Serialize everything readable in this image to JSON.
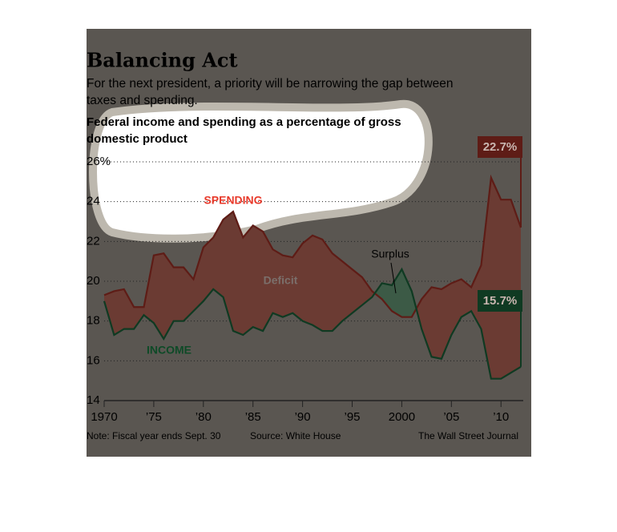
{
  "chart_data": {
    "type": "line",
    "title": "Balancing Act",
    "subtitle": "For the next president, a priority will be narrowing the gap between taxes and spending.",
    "chart_title": "Federal income and spending as a percentage of gross domestic product",
    "annotations": {
      "spending": "SPENDING",
      "income": "INCOME",
      "deficit": "Deficit",
      "surplus": "Surplus"
    },
    "note": "Note: Fiscal year ends Sept. 30",
    "source": "Source: White House",
    "credit": "The Wall Street Journal",
    "x": [
      1970,
      1971,
      1972,
      1973,
      1974,
      1975,
      1976,
      1977,
      1978,
      1979,
      1980,
      1981,
      1982,
      1983,
      1984,
      1985,
      1986,
      1987,
      1988,
      1989,
      1990,
      1991,
      1992,
      1993,
      1994,
      1995,
      1996,
      1997,
      1998,
      1999,
      2000,
      2001,
      2002,
      2003,
      2004,
      2005,
      2006,
      2007,
      2008,
      2009,
      2010,
      2011,
      2012
    ],
    "series": [
      {
        "name": "Spending",
        "color": "#5e1c16",
        "values": [
          19.3,
          19.5,
          19.6,
          18.7,
          18.7,
          21.3,
          21.4,
          20.7,
          20.7,
          20.1,
          21.7,
          22.2,
          23.1,
          23.5,
          22.2,
          22.8,
          22.5,
          21.6,
          21.3,
          21.2,
          21.9,
          22.3,
          22.1,
          21.4,
          21.0,
          20.6,
          20.2,
          19.5,
          19.1,
          18.5,
          18.2,
          18.2,
          19.1,
          19.7,
          19.6,
          19.9,
          20.1,
          19.7,
          20.8,
          25.2,
          24.1,
          24.1,
          22.7
        ],
        "value_labels": [
          null,
          null,
          null,
          null,
          null,
          null,
          null,
          null,
          null,
          null,
          null,
          null,
          null,
          null,
          null,
          null,
          null,
          null,
          null,
          null,
          null,
          null,
          null,
          null,
          null,
          null,
          null,
          null,
          null,
          null,
          null,
          null,
          null,
          null,
          null,
          null,
          null,
          null,
          null,
          null,
          null,
          null,
          "22.7%"
        ]
      },
      {
        "name": "Income",
        "color": "#0f3a22",
        "values": [
          19.0,
          17.3,
          17.6,
          17.6,
          18.3,
          17.9,
          17.1,
          18.0,
          18.0,
          18.5,
          19.0,
          19.6,
          19.2,
          17.5,
          17.3,
          17.7,
          17.5,
          18.4,
          18.2,
          18.4,
          18.0,
          17.8,
          17.5,
          17.5,
          18.0,
          18.4,
          18.8,
          19.2,
          19.9,
          19.8,
          20.6,
          19.5,
          17.6,
          16.2,
          16.1,
          17.3,
          18.2,
          18.5,
          17.6,
          15.1,
          15.1,
          15.4,
          15.7
        ],
        "value_labels": [
          null,
          null,
          null,
          null,
          null,
          null,
          null,
          null,
          null,
          null,
          null,
          null,
          null,
          null,
          null,
          null,
          null,
          null,
          null,
          null,
          null,
          null,
          null,
          null,
          null,
          null,
          null,
          null,
          null,
          null,
          null,
          null,
          null,
          null,
          null,
          null,
          null,
          null,
          null,
          null,
          null,
          null,
          "15.7%"
        ]
      }
    ],
    "xlim": [
      1970,
      2012
    ],
    "xticks": [
      1970,
      {
        "value": 1975,
        "label": "’75"
      },
      {
        "value": 1980,
        "label": "’80"
      },
      {
        "value": 1985,
        "label": "’85"
      },
      {
        "value": 1990,
        "label": "’90"
      },
      {
        "value": 1995,
        "label": "’95"
      },
      2000,
      {
        "value": 2005,
        "label": "’05"
      },
      {
        "value": 2010,
        "label": "’10"
      }
    ],
    "ylim": [
      14,
      26
    ],
    "yticks": [
      14,
      16,
      18,
      20,
      22,
      24,
      {
        "value": 26,
        "label": "26%"
      }
    ],
    "grid": true
  }
}
